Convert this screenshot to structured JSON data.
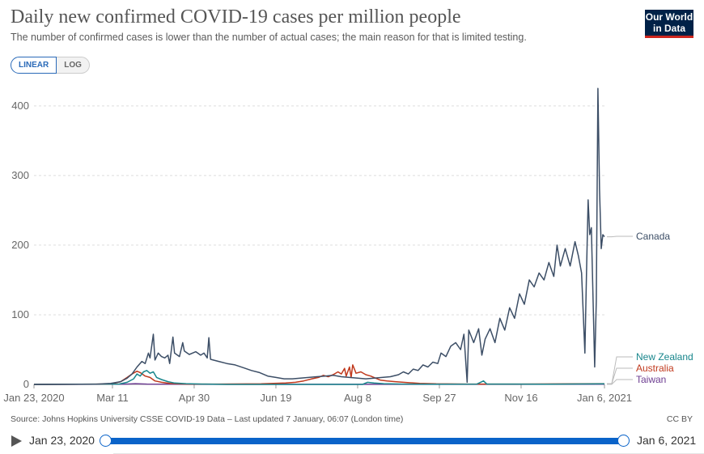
{
  "header": {
    "title": "Daily new confirmed COVID-19 cases per million people",
    "subtitle": "The number of confirmed cases is lower than the number of actual cases; the main reason for that is limited testing.",
    "logo_line1": "Our World",
    "logo_line2": "in Data"
  },
  "controls": {
    "linear_label": "LINEAR",
    "log_label": "LOG",
    "active": "linear"
  },
  "footer": {
    "source": "Source: Johns Hopkins University CSSE COVID-19 Data – Last updated 7 January, 06:07 (London time)",
    "license": "CC BY"
  },
  "timeline": {
    "start_label": "Jan 23, 2020",
    "end_label": "Jan 6, 2021"
  },
  "colors": {
    "canada": "#3c4e66",
    "new_zealand": "#18868c",
    "australia": "#c0391d",
    "taiwan": "#6d3d91",
    "accent": "#0a63c9"
  },
  "chart_data": {
    "type": "line",
    "ylim": [
      0,
      430
    ],
    "xlim": [
      "2020-01-23",
      "2021-01-06"
    ],
    "y_ticks": [
      0,
      100,
      200,
      300,
      400
    ],
    "x_ticks": [
      "2020-01-23",
      "2020-03-11",
      "2020-04-30",
      "2020-06-19",
      "2020-08-08",
      "2020-09-27",
      "2020-11-16",
      "2021-01-06"
    ],
    "x_tick_labels": [
      "Jan 23, 2020",
      "Mar 11",
      "Apr 30",
      "Jun 19",
      "Aug 8",
      "Sep 27",
      "Nov 16",
      "Jan 6, 2021"
    ],
    "grid": "horizontal",
    "legend": "line-end labels",
    "series": [
      {
        "name": "Canada",
        "key": "canada",
        "points": [
          [
            "2020-01-23",
            0
          ],
          [
            "2020-03-01",
            0.3
          ],
          [
            "2020-03-10",
            1.5
          ],
          [
            "2020-03-16",
            4
          ],
          [
            "2020-03-20",
            9
          ],
          [
            "2020-03-23",
            15
          ],
          [
            "2020-03-26",
            25
          ],
          [
            "2020-03-29",
            33
          ],
          [
            "2020-03-31",
            30
          ],
          [
            "2020-04-02",
            45
          ],
          [
            "2020-04-03",
            38
          ],
          [
            "2020-04-05",
            72
          ],
          [
            "2020-04-06",
            35
          ],
          [
            "2020-04-08",
            45
          ],
          [
            "2020-04-10",
            40
          ],
          [
            "2020-04-12",
            38
          ],
          [
            "2020-04-14",
            42
          ],
          [
            "2020-04-15",
            30
          ],
          [
            "2020-04-17",
            68
          ],
          [
            "2020-04-18",
            45
          ],
          [
            "2020-04-21",
            40
          ],
          [
            "2020-04-23",
            60
          ],
          [
            "2020-04-24",
            48
          ],
          [
            "2020-04-27",
            43
          ],
          [
            "2020-04-29",
            45
          ],
          [
            "2020-05-01",
            47
          ],
          [
            "2020-05-04",
            42
          ],
          [
            "2020-05-06",
            45
          ],
          [
            "2020-05-08",
            38
          ],
          [
            "2020-05-09",
            67
          ],
          [
            "2020-05-10",
            36
          ],
          [
            "2020-05-15",
            33
          ],
          [
            "2020-05-20",
            30
          ],
          [
            "2020-05-25",
            28
          ],
          [
            "2020-05-30",
            24
          ],
          [
            "2020-06-04",
            20
          ],
          [
            "2020-06-09",
            17
          ],
          [
            "2020-06-14",
            12
          ],
          [
            "2020-06-19",
            10
          ],
          [
            "2020-06-24",
            8
          ],
          [
            "2020-06-29",
            8
          ],
          [
            "2020-07-04",
            9
          ],
          [
            "2020-07-09",
            10
          ],
          [
            "2020-07-14",
            11
          ],
          [
            "2020-07-19",
            12
          ],
          [
            "2020-07-24",
            13
          ],
          [
            "2020-07-29",
            11
          ],
          [
            "2020-08-03",
            10
          ],
          [
            "2020-08-08",
            9
          ],
          [
            "2020-08-13",
            8
          ],
          [
            "2020-08-18",
            9
          ],
          [
            "2020-08-23",
            10
          ],
          [
            "2020-08-28",
            11
          ],
          [
            "2020-09-02",
            14
          ],
          [
            "2020-09-05",
            18
          ],
          [
            "2020-09-08",
            15
          ],
          [
            "2020-09-11",
            22
          ],
          [
            "2020-09-14",
            20
          ],
          [
            "2020-09-17",
            28
          ],
          [
            "2020-09-20",
            25
          ],
          [
            "2020-09-23",
            32
          ],
          [
            "2020-09-26",
            30
          ],
          [
            "2020-09-28",
            45
          ],
          [
            "2020-10-01",
            40
          ],
          [
            "2020-10-04",
            55
          ],
          [
            "2020-10-07",
            60
          ],
          [
            "2020-10-10",
            50
          ],
          [
            "2020-10-12",
            72
          ],
          [
            "2020-10-14",
            3
          ],
          [
            "2020-10-15",
            78
          ],
          [
            "2020-10-18",
            60
          ],
          [
            "2020-10-21",
            80
          ],
          [
            "2020-10-23",
            42
          ],
          [
            "2020-10-25",
            65
          ],
          [
            "2020-10-28",
            80
          ],
          [
            "2020-10-31",
            60
          ],
          [
            "2020-11-03",
            95
          ],
          [
            "2020-11-06",
            78
          ],
          [
            "2020-11-09",
            110
          ],
          [
            "2020-11-12",
            95
          ],
          [
            "2020-11-15",
            130
          ],
          [
            "2020-11-18",
            115
          ],
          [
            "2020-11-21",
            150
          ],
          [
            "2020-11-24",
            140
          ],
          [
            "2020-11-27",
            160
          ],
          [
            "2020-11-30",
            150
          ],
          [
            "2020-12-03",
            175
          ],
          [
            "2020-12-06",
            155
          ],
          [
            "2020-12-08",
            200
          ],
          [
            "2020-12-10",
            170
          ],
          [
            "2020-12-13",
            195
          ],
          [
            "2020-12-16",
            170
          ],
          [
            "2020-12-19",
            205
          ],
          [
            "2020-12-21",
            185
          ],
          [
            "2020-12-23",
            160
          ],
          [
            "2020-12-25",
            45
          ],
          [
            "2020-12-26",
            160
          ],
          [
            "2020-12-27",
            265
          ],
          [
            "2020-12-28",
            215
          ],
          [
            "2020-12-29",
            225
          ],
          [
            "2020-12-31",
            25
          ],
          [
            "2021-01-01",
            120
          ],
          [
            "2021-01-02",
            425
          ],
          [
            "2021-01-03",
            280
          ],
          [
            "2021-01-04",
            195
          ],
          [
            "2021-01-05",
            215
          ],
          [
            "2021-01-06",
            212
          ]
        ]
      },
      {
        "name": "New Zealand",
        "key": "new_zealand",
        "points": [
          [
            "2020-01-23",
            0
          ],
          [
            "2020-03-15",
            0.5
          ],
          [
            "2020-03-20",
            3
          ],
          [
            "2020-03-24",
            8
          ],
          [
            "2020-03-26",
            15
          ],
          [
            "2020-03-28",
            12
          ],
          [
            "2020-03-30",
            18
          ],
          [
            "2020-04-01",
            20
          ],
          [
            "2020-04-03",
            16
          ],
          [
            "2020-04-05",
            18
          ],
          [
            "2020-04-07",
            10
          ],
          [
            "2020-04-10",
            7
          ],
          [
            "2020-04-14",
            4
          ],
          [
            "2020-04-18",
            2
          ],
          [
            "2020-04-25",
            1
          ],
          [
            "2020-05-05",
            0.5
          ],
          [
            "2020-05-20",
            0
          ],
          [
            "2020-08-11",
            0
          ],
          [
            "2020-08-14",
            3
          ],
          [
            "2020-08-18",
            2
          ],
          [
            "2020-08-24",
            1
          ],
          [
            "2020-09-05",
            0.5
          ],
          [
            "2020-09-25",
            0.3
          ],
          [
            "2020-10-20",
            0.5
          ],
          [
            "2020-10-24",
            5
          ],
          [
            "2020-10-26",
            0.5
          ],
          [
            "2020-12-01",
            0.4
          ],
          [
            "2021-01-06",
            0.8
          ]
        ]
      },
      {
        "name": "Australia",
        "key": "australia",
        "points": [
          [
            "2020-01-23",
            0
          ],
          [
            "2020-03-10",
            0.5
          ],
          [
            "2020-03-16",
            4
          ],
          [
            "2020-03-20",
            10
          ],
          [
            "2020-03-23",
            15
          ],
          [
            "2020-03-26",
            19
          ],
          [
            "2020-03-28",
            17
          ],
          [
            "2020-03-31",
            12
          ],
          [
            "2020-04-03",
            10
          ],
          [
            "2020-04-06",
            5
          ],
          [
            "2020-04-10",
            3
          ],
          [
            "2020-04-15",
            1.5
          ],
          [
            "2020-04-25",
            0.5
          ],
          [
            "2020-05-15",
            0.5
          ],
          [
            "2020-06-10",
            0.8
          ],
          [
            "2020-06-25",
            2
          ],
          [
            "2020-07-01",
            3
          ],
          [
            "2020-07-06",
            5
          ],
          [
            "2020-07-11",
            8
          ],
          [
            "2020-07-15",
            10
          ],
          [
            "2020-07-18",
            13
          ],
          [
            "2020-07-21",
            11
          ],
          [
            "2020-07-24",
            14
          ],
          [
            "2020-07-27",
            18
          ],
          [
            "2020-07-29",
            15
          ],
          [
            "2020-07-31",
            23
          ],
          [
            "2020-08-01",
            12
          ],
          [
            "2020-08-03",
            25
          ],
          [
            "2020-08-04",
            10
          ],
          [
            "2020-08-05",
            28
          ],
          [
            "2020-08-07",
            16
          ],
          [
            "2020-08-10",
            18
          ],
          [
            "2020-08-13",
            14
          ],
          [
            "2020-08-16",
            12
          ],
          [
            "2020-08-19",
            9
          ],
          [
            "2020-08-22",
            6
          ],
          [
            "2020-08-26",
            5
          ],
          [
            "2020-08-31",
            4
          ],
          [
            "2020-09-05",
            3
          ],
          [
            "2020-09-15",
            1.5
          ],
          [
            "2020-09-25",
            0.8
          ],
          [
            "2020-10-15",
            0.5
          ],
          [
            "2020-11-15",
            0.5
          ],
          [
            "2020-12-20",
            0.8
          ],
          [
            "2021-01-06",
            1
          ]
        ]
      },
      {
        "name": "Taiwan",
        "key": "taiwan",
        "points": [
          [
            "2020-01-23",
            0
          ],
          [
            "2020-03-18",
            0.4
          ],
          [
            "2020-03-25",
            1
          ],
          [
            "2020-04-01",
            0.5
          ],
          [
            "2020-04-15",
            0.3
          ],
          [
            "2020-05-10",
            0.1
          ],
          [
            "2020-10-01",
            0.1
          ],
          [
            "2021-01-06",
            0.2
          ]
        ]
      }
    ]
  }
}
